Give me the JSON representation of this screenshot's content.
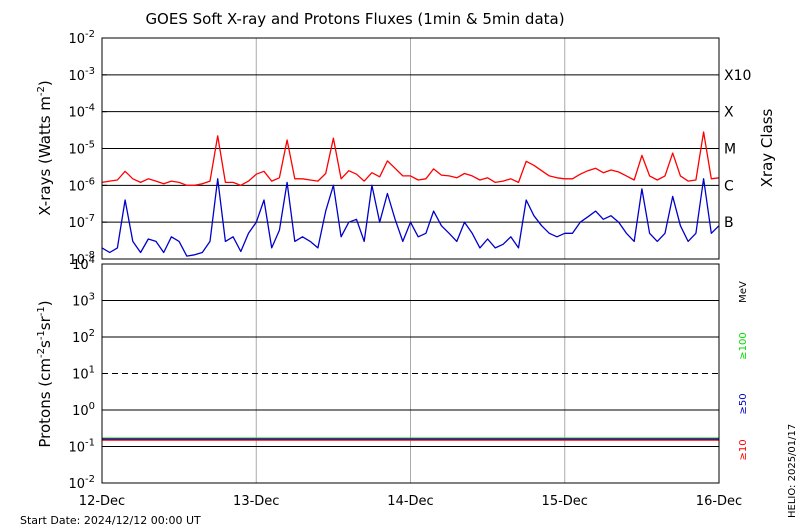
{
  "chart_data": [
    {
      "type": "line",
      "title": "GOES Soft X-ray and Protons Fluxes   (1min & 5min data)",
      "ylabel": "X-rays (Watts m",
      "ylabel_sup": "-2",
      "ylabel_close": ")",
      "yscale": "log",
      "ylim": [
        1e-08,
        0.01
      ],
      "x_dates": [
        "12-Dec",
        "13-Dec",
        "14-Dec",
        "15-Dec",
        "16-Dec"
      ],
      "xlim_days": [
        0,
        4
      ],
      "y_ticks": [
        {
          "base": "10",
          "exp": "-8",
          "value": 1e-08
        },
        {
          "base": "10",
          "exp": "-7",
          "value": 1e-07
        },
        {
          "base": "10",
          "exp": "-6",
          "value": 1e-06
        },
        {
          "base": "10",
          "exp": "-5",
          "value": 1e-05
        },
        {
          "base": "10",
          "exp": "-4",
          "value": 0.0001
        },
        {
          "base": "10",
          "exp": "-3",
          "value": 0.001
        },
        {
          "base": "10",
          "exp": "-2",
          "value": 0.01
        }
      ],
      "class_axis_label": "Xray Class",
      "class_labels": [
        {
          "label": "X10",
          "value": 0.001
        },
        {
          "label": "X",
          "value": 0.0001
        },
        {
          "label": "M",
          "value": 1e-05
        },
        {
          "label": "C",
          "value": 1e-06
        },
        {
          "label": "B",
          "value": 1e-07
        }
      ],
      "series": [
        {
          "color": "#ff0000",
          "x": [
            0,
            0.05,
            0.1,
            0.15,
            0.2,
            0.25,
            0.3,
            0.35,
            0.4,
            0.45,
            0.5,
            0.55,
            0.6,
            0.65,
            0.7,
            0.75,
            0.8,
            0.85,
            0.9,
            0.95,
            1.0,
            1.05,
            1.1,
            1.15,
            1.2,
            1.25,
            1.3,
            1.35,
            1.4,
            1.45,
            1.5,
            1.55,
            1.6,
            1.65,
            1.7,
            1.75,
            1.8,
            1.85,
            1.9,
            1.95,
            2.0,
            2.05,
            2.1,
            2.15,
            2.2,
            2.25,
            2.3,
            2.35,
            2.4,
            2.45,
            2.5,
            2.55,
            2.6,
            2.65,
            2.7,
            2.75,
            2.8,
            2.85,
            2.9,
            2.95,
            3.0,
            3.05,
            3.1,
            3.15,
            3.2,
            3.25,
            3.3,
            3.35,
            3.4,
            3.45,
            3.5,
            3.55,
            3.6,
            3.65,
            3.7,
            3.75,
            3.8,
            3.85,
            3.9,
            3.95,
            4.0
          ],
          "y": [
            1.2e-06,
            1.3e-06,
            1.4e-06,
            2.4e-06,
            1.5e-06,
            1.2e-06,
            1.5e-06,
            1.3e-06,
            1.1e-06,
            1.3e-06,
            1.2e-06,
            1e-06,
            1e-06,
            1.1e-06,
            1.3e-06,
            2.2e-05,
            1.2e-06,
            1.2e-06,
            1e-06,
            1.3e-06,
            2e-06,
            2.4e-06,
            1.3e-06,
            1.6e-06,
            1.7e-05,
            1.5e-06,
            1.5e-06,
            1.4e-06,
            1.3e-06,
            2.1e-06,
            1.9e-05,
            1.5e-06,
            2.5e-06,
            2e-06,
            1.3e-06,
            2.2e-06,
            1.7e-06,
            4.6e-06,
            2.9e-06,
            1.8e-06,
            1.8e-06,
            1.4e-06,
            1.5e-06,
            2.8e-06,
            1.9e-06,
            1.8e-06,
            1.6e-06,
            2.1e-06,
            1.8e-06,
            1.4e-06,
            1.6e-06,
            1.2e-06,
            1.3e-06,
            1.5e-06,
            1.2e-06,
            4.5e-06,
            3.5e-06,
            2.5e-06,
            1.8e-06,
            1.6e-06,
            1.5e-06,
            1.5e-06,
            2e-06,
            2.5e-06,
            2.9e-06,
            2.2e-06,
            2.6e-06,
            2.3e-06,
            1.8e-06,
            1.4e-06,
            6.5e-06,
            1.8e-06,
            1.4e-06,
            1.8e-06,
            7.5e-06,
            1.8e-06,
            1.3e-06,
            1.4e-06,
            2.8e-05,
            1.5e-06,
            1.6e-06
          ]
        },
        {
          "color": "#0000cc",
          "x": [
            0,
            0.05,
            0.1,
            0.15,
            0.2,
            0.25,
            0.3,
            0.35,
            0.4,
            0.45,
            0.5,
            0.55,
            0.6,
            0.65,
            0.7,
            0.75,
            0.8,
            0.85,
            0.9,
            0.95,
            1.0,
            1.05,
            1.1,
            1.15,
            1.2,
            1.25,
            1.3,
            1.35,
            1.4,
            1.45,
            1.5,
            1.55,
            1.6,
            1.65,
            1.7,
            1.75,
            1.8,
            1.85,
            1.9,
            1.95,
            2.0,
            2.05,
            2.1,
            2.15,
            2.2,
            2.25,
            2.3,
            2.35,
            2.4,
            2.45,
            2.5,
            2.55,
            2.6,
            2.65,
            2.7,
            2.75,
            2.8,
            2.85,
            2.9,
            2.95,
            3.0,
            3.05,
            3.1,
            3.15,
            3.2,
            3.25,
            3.3,
            3.35,
            3.4,
            3.45,
            3.5,
            3.55,
            3.6,
            3.65,
            3.7,
            3.75,
            3.8,
            3.85,
            3.9,
            3.95,
            4.0
          ],
          "y": [
            2e-08,
            1.5e-08,
            2e-08,
            4e-07,
            3e-08,
            1.5e-08,
            3.5e-08,
            3e-08,
            1.5e-08,
            4e-08,
            3e-08,
            1.2e-08,
            1.3e-08,
            1.5e-08,
            3e-08,
            1.5e-06,
            3e-08,
            4e-08,
            1.6e-08,
            5e-08,
            1e-07,
            4e-07,
            2e-08,
            6e-08,
            1.2e-06,
            3e-08,
            4e-08,
            3e-08,
            2e-08,
            2e-07,
            1e-06,
            4e-08,
            1e-07,
            1.2e-07,
            3e-08,
            1e-06,
            1e-07,
            6e-07,
            1.2e-07,
            3e-08,
            1e-07,
            4e-08,
            5e-08,
            2e-07,
            8e-08,
            5e-08,
            3e-08,
            1e-07,
            5e-08,
            2e-08,
            3.5e-08,
            2e-08,
            2.5e-08,
            4e-08,
            2e-08,
            4e-07,
            1.5e-07,
            8e-08,
            5e-08,
            4e-08,
            5e-08,
            5e-08,
            1e-07,
            1.4e-07,
            2e-07,
            1.2e-07,
            1.5e-07,
            1e-07,
            5e-08,
            3e-08,
            8e-07,
            5e-08,
            3e-08,
            5e-08,
            5e-07,
            8e-08,
            3e-08,
            5e-08,
            1.5e-06,
            5e-08,
            8e-08
          ]
        }
      ]
    },
    {
      "type": "line",
      "ylabel": "Protons (cm",
      "ylabel_sup1": "-2",
      "ylabel_mid": "s",
      "ylabel_sup2": "-1",
      "ylabel_mid2": "sr",
      "ylabel_sup3": "-1",
      "ylabel_close": ")",
      "yscale": "log",
      "ylim": [
        0.01,
        10000
      ],
      "y_ticks": [
        {
          "base": "10",
          "exp": "-2",
          "value": 0.01
        },
        {
          "base": "10",
          "exp": "-1",
          "value": 0.1
        },
        {
          "base": "10",
          "exp": "0",
          "value": 1
        },
        {
          "base": "10",
          "exp": "1",
          "value": 10
        },
        {
          "base": "10",
          "exp": "2",
          "value": 100
        },
        {
          "base": "10",
          "exp": "3",
          "value": 1000
        },
        {
          "base": "10",
          "exp": "4",
          "value": 10000
        }
      ],
      "threshold_value": 10,
      "energy_unit": "MeV",
      "energy_channels": [
        {
          "label": "≥100",
          "color": "#00dd00"
        },
        {
          "label": "≥50",
          "color": "#0000cc"
        },
        {
          "label": "≥10",
          "color": "#ff0000"
        }
      ],
      "series": [
        {
          "color": "#00dd00",
          "x": [
            0,
            4
          ],
          "y": [
            0.17,
            0.17
          ]
        },
        {
          "color": "#0000cc",
          "x": [
            0,
            4
          ],
          "y": [
            0.16,
            0.16
          ]
        },
        {
          "color": "#ff0000",
          "x": [
            0,
            4
          ],
          "y": [
            0.15,
            0.15
          ]
        }
      ]
    }
  ],
  "footer": {
    "start_date": "Start Date: 2024/12/12 00:00 UT",
    "stamp": "HELIO: 2025/01/17"
  }
}
